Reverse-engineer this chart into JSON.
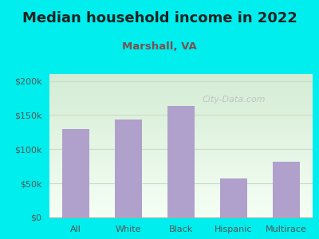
{
  "title": "Median household income in 2022",
  "subtitle": "Marshall, VA",
  "categories": [
    "All",
    "White",
    "Black",
    "Hispanic",
    "Multirace"
  ],
  "values": [
    130000,
    143000,
    163000,
    57000,
    82000
  ],
  "bar_color": "#b0a0cc",
  "title_color": "#222222",
  "subtitle_color": "#7a5050",
  "background_outer": "#00eeee",
  "bg_top": "#d4ecd4",
  "bg_bottom": "#f5fff5",
  "grid_color": "#c8dcc8",
  "tick_label_color": "#555555",
  "ylim": [
    0,
    210000
  ],
  "yticks": [
    0,
    50000,
    100000,
    150000,
    200000
  ],
  "ytick_labels": [
    "$0",
    "$50k",
    "$100k",
    "$150k",
    "$200k"
  ],
  "watermark": "City-Data.com",
  "title_fontsize": 13,
  "subtitle_fontsize": 9.5,
  "tick_fontsize": 8
}
